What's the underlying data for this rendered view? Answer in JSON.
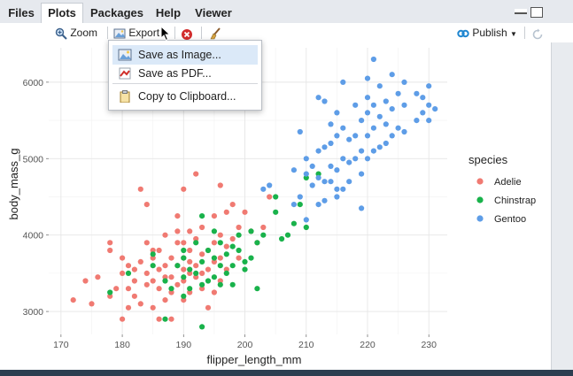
{
  "tabs": [
    "Files",
    "Plots",
    "Packages",
    "Help",
    "Viewer"
  ],
  "active_tab": "Plots",
  "toolbar": {
    "zoom_label": "Zoom",
    "export_label": "Export",
    "publish_label": "Publish"
  },
  "export_menu": {
    "items": [
      "Save as Image...",
      "Save as PDF...",
      "Copy to Clipboard..."
    ],
    "highlighted": "Save as Image..."
  },
  "icons": [
    "zoom-icon",
    "export-icon",
    "delete-plot-icon",
    "clear-all-icon",
    "publish-icon",
    "refresh-icon",
    "minimize-icon",
    "maximize-icon",
    "save-image-icon",
    "save-pdf-icon",
    "clipboard-icon"
  ],
  "colors": {
    "Adelie": "#f07a72",
    "Chinstrap": "#19b24b",
    "Gentoo": "#5e9de7"
  },
  "chart_data": {
    "type": "scatter",
    "xlabel": "flipper_length_mm",
    "ylabel": "body_mass_g",
    "xlim": [
      168,
      233
    ],
    "ylim": [
      2700,
      6450
    ],
    "xticks": [
      170,
      180,
      190,
      200,
      210,
      220,
      230
    ],
    "yticks": [
      3000,
      4000,
      5000,
      6000
    ],
    "grid": true,
    "legend": {
      "title": "species",
      "placement": "right",
      "entries": [
        "Adelie",
        "Chinstrap",
        "Gentoo"
      ]
    },
    "series": [
      {
        "name": "Adelie",
        "points": [
          [
            172,
            3150
          ],
          [
            174,
            3400
          ],
          [
            176,
            3450
          ],
          [
            178,
            3200
          ],
          [
            178,
            3800
          ],
          [
            178,
            3900
          ],
          [
            179,
            3300
          ],
          [
            180,
            2900
          ],
          [
            180,
            3500
          ],
          [
            180,
            3700
          ],
          [
            181,
            3050
          ],
          [
            181,
            3300
          ],
          [
            181,
            3600
          ],
          [
            182,
            3200
          ],
          [
            182,
            3550
          ],
          [
            183,
            3100
          ],
          [
            183,
            3650
          ],
          [
            184,
            3350
          ],
          [
            184,
            3500
          ],
          [
            184,
            3900
          ],
          [
            185,
            3050
          ],
          [
            185,
            3400
          ],
          [
            185,
            3700
          ],
          [
            185,
            3800
          ],
          [
            186,
            2900
          ],
          [
            186,
            3300
          ],
          [
            186,
            3550
          ],
          [
            186,
            3800
          ],
          [
            187,
            3150
          ],
          [
            187,
            3450
          ],
          [
            187,
            3600
          ],
          [
            187,
            4000
          ],
          [
            188,
            3250
          ],
          [
            188,
            3450
          ],
          [
            188,
            3700
          ],
          [
            189,
            3350
          ],
          [
            189,
            3600
          ],
          [
            189,
            3900
          ],
          [
            189,
            4250
          ],
          [
            190,
            3150
          ],
          [
            190,
            3400
          ],
          [
            190,
            3550
          ],
          [
            190,
            3700
          ],
          [
            190,
            3900
          ],
          [
            190,
            4600
          ],
          [
            191,
            3250
          ],
          [
            191,
            3500
          ],
          [
            191,
            3650
          ],
          [
            191,
            3800
          ],
          [
            191,
            4050
          ],
          [
            192,
            3450
          ],
          [
            192,
            3600
          ],
          [
            192,
            3950
          ],
          [
            193,
            3300
          ],
          [
            193,
            3500
          ],
          [
            193,
            3750
          ],
          [
            193,
            4100
          ],
          [
            194,
            3550
          ],
          [
            194,
            3800
          ],
          [
            195,
            3250
          ],
          [
            195,
            3650
          ],
          [
            195,
            3900
          ],
          [
            195,
            4250
          ],
          [
            196,
            3400
          ],
          [
            196,
            3700
          ],
          [
            196,
            4000
          ],
          [
            197,
            3550
          ],
          [
            197,
            3850
          ],
          [
            197,
            4300
          ],
          [
            198,
            3950
          ],
          [
            198,
            4400
          ],
          [
            199,
            3700
          ],
          [
            199,
            4100
          ],
          [
            200,
            4300
          ],
          [
            201,
            4050
          ],
          [
            202,
            3900
          ],
          [
            203,
            4100
          ],
          [
            204,
            4500
          ],
          [
            175,
            3100
          ],
          [
            182,
            3400
          ],
          [
            188,
            2900
          ],
          [
            194,
            3050
          ],
          [
            184,
            4400
          ],
          [
            183,
            4600
          ],
          [
            189,
            4050
          ],
          [
            192,
            4800
          ],
          [
            196,
            4650
          ]
        ]
      },
      {
        "name": "Chinstrap",
        "points": [
          [
            178,
            3250
          ],
          [
            181,
            3500
          ],
          [
            185,
            3600
          ],
          [
            187,
            2900
          ],
          [
            187,
            3400
          ],
          [
            188,
            3300
          ],
          [
            189,
            3600
          ],
          [
            190,
            3200
          ],
          [
            190,
            3450
          ],
          [
            190,
            3700
          ],
          [
            191,
            3300
          ],
          [
            191,
            3550
          ],
          [
            192,
            3500
          ],
          [
            192,
            3900
          ],
          [
            193,
            2800
          ],
          [
            193,
            3350
          ],
          [
            193,
            3650
          ],
          [
            194,
            3400
          ],
          [
            194,
            3800
          ],
          [
            195,
            3450
          ],
          [
            195,
            3700
          ],
          [
            195,
            4050
          ],
          [
            196,
            3350
          ],
          [
            196,
            3600
          ],
          [
            196,
            3900
          ],
          [
            197,
            3500
          ],
          [
            197,
            3750
          ],
          [
            198,
            3600
          ],
          [
            198,
            3850
          ],
          [
            199,
            3800
          ],
          [
            199,
            4000
          ],
          [
            200,
            3550
          ],
          [
            200,
            3650
          ],
          [
            201,
            3700
          ],
          [
            201,
            4050
          ],
          [
            202,
            3900
          ],
          [
            203,
            4000
          ],
          [
            205,
            4300
          ],
          [
            205,
            4500
          ],
          [
            206,
            3950
          ],
          [
            207,
            4000
          ],
          [
            208,
            4150
          ],
          [
            209,
            4400
          ],
          [
            210,
            4100
          ],
          [
            210,
            4750
          ],
          [
            212,
            4800
          ],
          [
            190,
            3800
          ],
          [
            185,
            3750
          ],
          [
            193,
            4250
          ],
          [
            198,
            3350
          ],
          [
            202,
            3300
          ]
        ]
      },
      {
        "name": "Gentoo",
        "points": [
          [
            203,
            4600
          ],
          [
            204,
            4650
          ],
          [
            208,
            4400
          ],
          [
            208,
            4850
          ],
          [
            209,
            4500
          ],
          [
            209,
            5350
          ],
          [
            210,
            4200
          ],
          [
            210,
            4800
          ],
          [
            210,
            5000
          ],
          [
            211,
            4650
          ],
          [
            211,
            4900
          ],
          [
            212,
            4400
          ],
          [
            212,
            4750
          ],
          [
            212,
            5100
          ],
          [
            213,
            4450
          ],
          [
            213,
            4700
          ],
          [
            213,
            5150
          ],
          [
            213,
            5750
          ],
          [
            214,
            4700
          ],
          [
            214,
            4900
          ],
          [
            214,
            5200
          ],
          [
            214,
            5450
          ],
          [
            215,
            4600
          ],
          [
            215,
            4850
          ],
          [
            215,
            5300
          ],
          [
            215,
            5600
          ],
          [
            216,
            4600
          ],
          [
            216,
            5000
          ],
          [
            216,
            5400
          ],
          [
            217,
            4700
          ],
          [
            217,
            4950
          ],
          [
            217,
            5250
          ],
          [
            218,
            5000
          ],
          [
            218,
            5300
          ],
          [
            218,
            5700
          ],
          [
            219,
            4800
          ],
          [
            219,
            5100
          ],
          [
            219,
            5500
          ],
          [
            220,
            5000
          ],
          [
            220,
            5300
          ],
          [
            220,
            5600
          ],
          [
            220,
            5800
          ],
          [
            221,
            5100
          ],
          [
            221,
            5400
          ],
          [
            221,
            5700
          ],
          [
            222,
            5150
          ],
          [
            222,
            5550
          ],
          [
            222,
            5950
          ],
          [
            223,
            5200
          ],
          [
            223,
            5450
          ],
          [
            223,
            5750
          ],
          [
            224,
            5300
          ],
          [
            224,
            5650
          ],
          [
            225,
            5400
          ],
          [
            225,
            5850
          ],
          [
            226,
            5350
          ],
          [
            226,
            5700
          ],
          [
            228,
            5500
          ],
          [
            228,
            5850
          ],
          [
            229,
            5600
          ],
          [
            229,
            5800
          ],
          [
            230,
            5500
          ],
          [
            230,
            5700
          ],
          [
            230,
            5950
          ],
          [
            231,
            5650
          ],
          [
            221,
            6300
          ],
          [
            216,
            6000
          ],
          [
            212,
            5800
          ],
          [
            220,
            6050
          ],
          [
            224,
            6100
          ],
          [
            226,
            6000
          ],
          [
            219,
            4350
          ],
          [
            215,
            4500
          ]
        ]
      }
    ]
  }
}
